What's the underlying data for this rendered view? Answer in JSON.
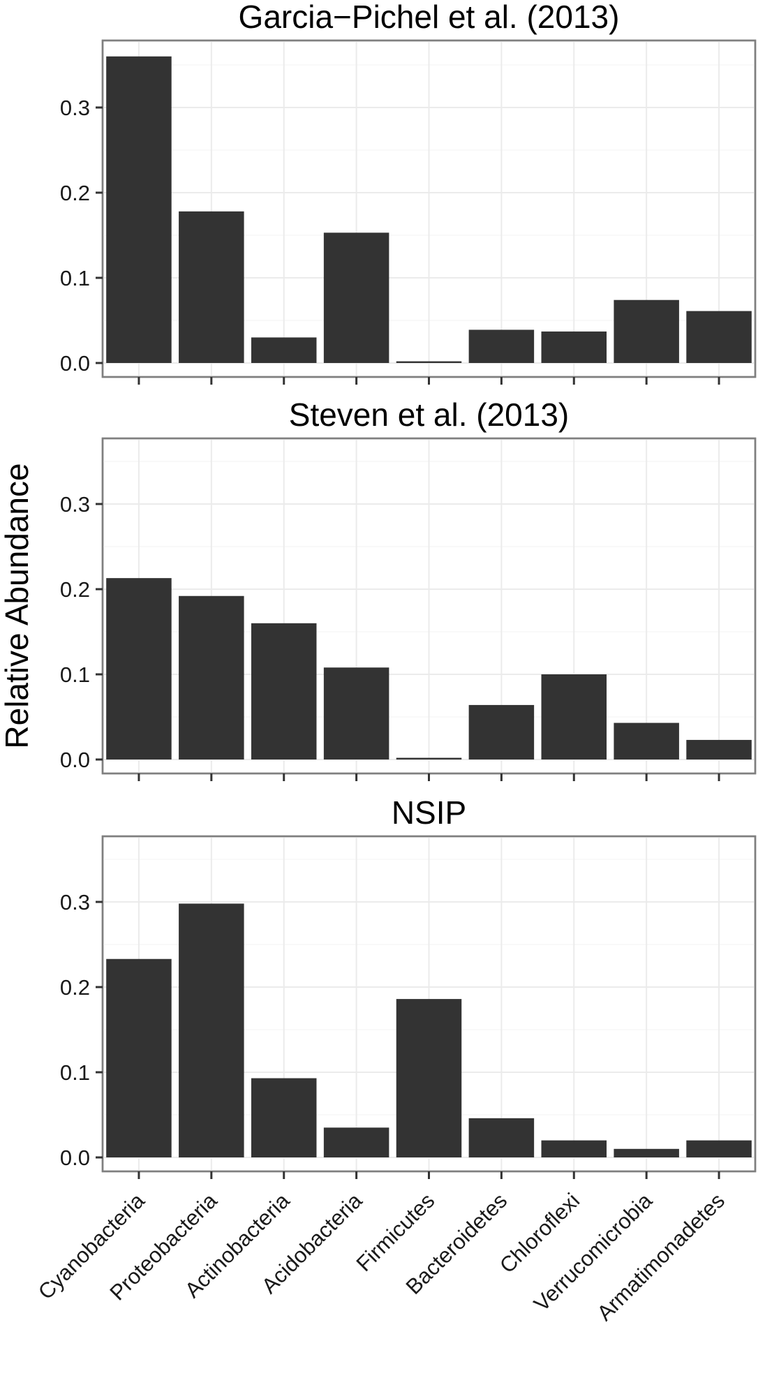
{
  "chart_data": {
    "type": "bar",
    "ylabel": "Relative Abundance",
    "categories": [
      "Cyanobacteria",
      "Proteobacteria",
      "Actinobacteria",
      "Acidobacteria",
      "Firmicutes",
      "Bacteroidetes",
      "Chloroflexi",
      "Verrucomicrobia",
      "Armatimonadetes"
    ],
    "yticks": [
      "0.0",
      "0.1",
      "0.2",
      "0.3"
    ],
    "ylim": [
      0,
      0.37
    ],
    "panels": [
      {
        "title": "Garcia−Pichel et al. (2013)",
        "values": [
          0.36,
          0.178,
          0.03,
          0.153,
          0.002,
          0.039,
          0.037,
          0.074,
          0.061
        ]
      },
      {
        "title": "Steven et al. (2013)",
        "values": [
          0.213,
          0.192,
          0.16,
          0.108,
          0.002,
          0.064,
          0.1,
          0.043,
          0.023
        ]
      },
      {
        "title": "NSIP",
        "values": [
          0.233,
          0.298,
          0.093,
          0.035,
          0.186,
          0.046,
          0.02,
          0.01,
          0.02
        ]
      }
    ]
  }
}
